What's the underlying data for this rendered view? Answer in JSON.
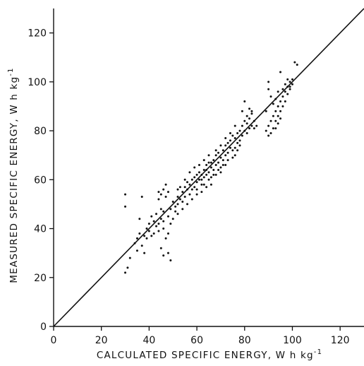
{
  "chart_data": {
    "type": "scatter",
    "title": "",
    "xlabel": "CALCULATED SPECIFIC ENERGY, W h kg",
    "xlabel_sup": "-1",
    "ylabel": "MEASURED SPECIFIC ENERGY, W h kg",
    "ylabel_sup": "-1",
    "xlim": [
      0,
      130
    ],
    "ylim": [
      0,
      130
    ],
    "xticks": [
      "0",
      "20",
      "40",
      "60",
      "80",
      "100",
      "120"
    ],
    "yticks": [
      "0",
      "20",
      "40",
      "60",
      "80",
      "100",
      "120"
    ],
    "grid": false,
    "reference_line": {
      "x": [
        0,
        130
      ],
      "y": [
        0,
        130
      ]
    },
    "series": [
      {
        "points": [
          [
            30,
            22
          ],
          [
            31,
            24
          ],
          [
            30,
            49
          ],
          [
            30,
            54
          ],
          [
            32,
            28
          ],
          [
            34,
            34
          ],
          [
            35,
            36
          ],
          [
            35,
            31
          ],
          [
            36,
            38
          ],
          [
            36,
            44
          ],
          [
            37,
            53
          ],
          [
            37,
            33
          ],
          [
            38,
            30
          ],
          [
            38,
            37
          ],
          [
            39,
            40
          ],
          [
            39,
            36
          ],
          [
            40,
            42
          ],
          [
            40,
            39
          ],
          [
            41,
            45
          ],
          [
            41,
            37
          ],
          [
            42,
            43
          ],
          [
            42,
            38
          ],
          [
            43,
            41
          ],
          [
            43,
            46
          ],
          [
            44,
            39
          ],
          [
            44,
            42
          ],
          [
            45,
            44
          ],
          [
            45,
            48
          ],
          [
            46,
            47
          ],
          [
            46,
            43
          ],
          [
            44,
            52
          ],
          [
            45,
            54
          ],
          [
            46,
            56
          ],
          [
            47,
            58
          ],
          [
            48,
            55
          ],
          [
            44,
            55
          ],
          [
            47,
            53
          ],
          [
            45,
            32
          ],
          [
            46,
            29
          ],
          [
            48,
            30
          ],
          [
            49,
            27
          ],
          [
            46,
            40
          ],
          [
            47,
            36
          ],
          [
            48,
            38
          ],
          [
            49,
            42
          ],
          [
            50,
            44
          ],
          [
            51,
            47
          ],
          [
            52,
            50
          ],
          [
            52,
            53
          ],
          [
            50,
            51
          ],
          [
            53,
            52
          ],
          [
            54,
            55
          ],
          [
            54,
            51
          ],
          [
            55,
            57
          ],
          [
            55,
            53
          ],
          [
            56,
            56
          ],
          [
            56,
            59
          ],
          [
            57,
            54
          ],
          [
            57,
            58
          ],
          [
            58,
            60
          ],
          [
            58,
            56
          ],
          [
            59,
            61
          ],
          [
            59,
            57
          ],
          [
            60,
            59
          ],
          [
            60,
            62
          ],
          [
            61,
            60
          ],
          [
            61,
            63
          ],
          [
            62,
            62
          ],
          [
            62,
            58
          ],
          [
            63,
            64
          ],
          [
            63,
            61
          ],
          [
            64,
            66
          ],
          [
            64,
            62
          ],
          [
            65,
            63
          ],
          [
            65,
            67
          ],
          [
            66,
            65
          ],
          [
            66,
            61
          ],
          [
            67,
            68
          ],
          [
            67,
            64
          ],
          [
            68,
            66
          ],
          [
            68,
            70
          ],
          [
            69,
            67
          ],
          [
            69,
            71
          ],
          [
            70,
            69
          ],
          [
            70,
            65
          ],
          [
            71,
            72
          ],
          [
            71,
            68
          ],
          [
            72,
            70
          ],
          [
            72,
            74
          ],
          [
            73,
            71
          ],
          [
            73,
            75
          ],
          [
            74,
            73
          ],
          [
            74,
            76
          ],
          [
            75,
            72
          ],
          [
            75,
            78
          ],
          [
            76,
            77
          ],
          [
            76,
            73
          ],
          [
            77,
            79
          ],
          [
            77,
            75
          ],
          [
            78,
            80
          ],
          [
            78,
            76
          ],
          [
            79,
            82
          ],
          [
            79,
            78
          ],
          [
            80,
            84
          ],
          [
            80,
            80
          ],
          [
            81,
            83
          ],
          [
            81,
            79
          ],
          [
            82,
            85
          ],
          [
            82,
            81
          ],
          [
            83,
            87
          ],
          [
            83,
            82
          ],
          [
            84,
            84
          ],
          [
            85,
            82
          ],
          [
            79,
            88
          ],
          [
            80,
            92
          ],
          [
            81,
            86
          ],
          [
            82,
            89
          ],
          [
            83,
            88
          ],
          [
            84,
            81
          ],
          [
            78,
            74
          ],
          [
            77,
            72
          ],
          [
            76,
            70
          ],
          [
            75,
            69
          ],
          [
            72,
            66
          ],
          [
            70,
            63
          ],
          [
            68,
            62
          ],
          [
            66,
            58
          ],
          [
            64,
            57
          ],
          [
            62,
            55
          ],
          [
            60,
            54
          ],
          [
            58,
            52
          ],
          [
            56,
            50
          ],
          [
            54,
            48
          ],
          [
            52,
            46
          ],
          [
            55,
            60
          ],
          [
            57,
            63
          ],
          [
            59,
            65
          ],
          [
            61,
            66
          ],
          [
            63,
            68
          ],
          [
            65,
            70
          ],
          [
            60,
            56
          ],
          [
            62,
            60
          ],
          [
            64,
            64
          ],
          [
            66,
            67
          ],
          [
            68,
            72
          ],
          [
            70,
            74
          ],
          [
            72,
            77
          ],
          [
            74,
            79
          ],
          [
            76,
            82
          ],
          [
            73,
            68
          ],
          [
            71,
            66
          ],
          [
            69,
            64
          ],
          [
            67,
            62
          ],
          [
            65,
            60
          ],
          [
            63,
            58
          ],
          [
            53,
            57
          ],
          [
            51,
            49
          ],
          [
            49,
            48
          ],
          [
            48,
            45
          ],
          [
            52,
            56
          ],
          [
            89,
            80
          ],
          [
            90,
            78
          ],
          [
            90,
            82
          ],
          [
            91,
            79
          ],
          [
            91,
            84
          ],
          [
            92,
            86
          ],
          [
            92,
            81
          ],
          [
            93,
            88
          ],
          [
            93,
            84
          ],
          [
            94,
            90
          ],
          [
            94,
            86
          ],
          [
            95,
            92
          ],
          [
            95,
            88
          ],
          [
            96,
            94
          ],
          [
            96,
            90
          ],
          [
            97,
            96
          ],
          [
            97,
            92
          ],
          [
            98,
            98
          ],
          [
            98,
            95
          ],
          [
            99,
            100
          ],
          [
            99,
            97
          ],
          [
            100,
            99
          ],
          [
            100,
            101
          ],
          [
            101,
            108
          ],
          [
            102,
            107
          ],
          [
            95,
            104
          ],
          [
            90,
            100
          ],
          [
            90,
            97
          ],
          [
            91,
            94
          ],
          [
            89,
            88
          ],
          [
            92,
            91
          ],
          [
            93,
            93
          ],
          [
            94,
            96
          ],
          [
            96,
            97
          ],
          [
            97,
            99
          ],
          [
            98,
            101
          ],
          [
            99,
            98
          ],
          [
            95,
            85
          ],
          [
            94,
            83
          ],
          [
            93,
            81
          ]
        ]
      }
    ]
  }
}
